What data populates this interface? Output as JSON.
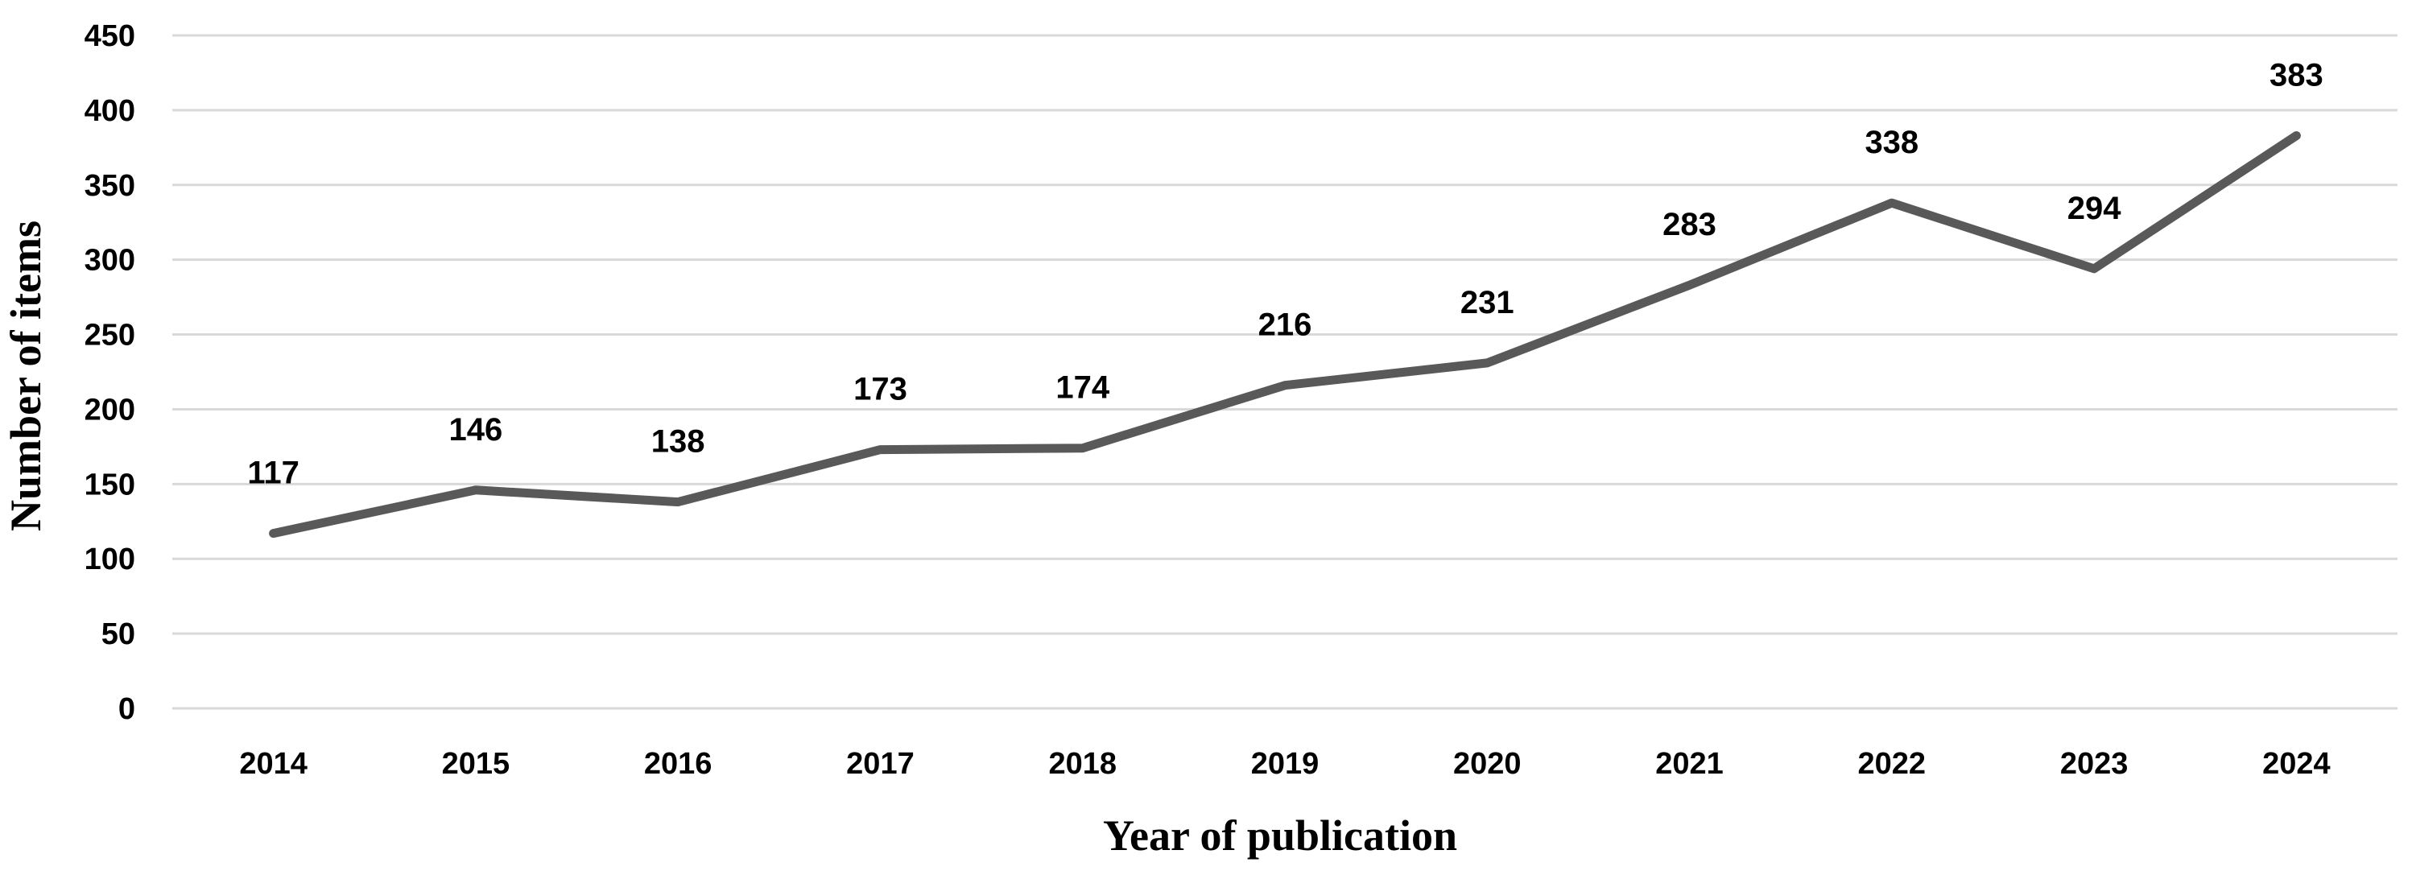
{
  "chart_data": {
    "type": "line",
    "categories": [
      "2014",
      "2015",
      "2016",
      "2017",
      "2018",
      "2019",
      "2020",
      "2021",
      "2022",
      "2023",
      "2024"
    ],
    "series": [
      {
        "values": [
          117,
          146,
          138,
          173,
          174,
          216,
          231,
          283,
          338,
          294,
          383
        ],
        "color": "#595959"
      }
    ],
    "data_labels": [
      "117",
      "146",
      "138",
      "173",
      "174",
      "216",
      "231",
      "283",
      "338",
      "294",
      "383"
    ],
    "xlabel": "Year of publication",
    "ylabel": "Number of items",
    "ylim": [
      0,
      450
    ],
    "yticks": [
      0,
      50,
      100,
      150,
      200,
      250,
      300,
      350,
      400,
      450
    ],
    "ytick_labels": [
      "0",
      "50",
      "100",
      "150",
      "200",
      "250",
      "300",
      "350",
      "400",
      "450"
    ],
    "grid": true,
    "legend": "none"
  }
}
